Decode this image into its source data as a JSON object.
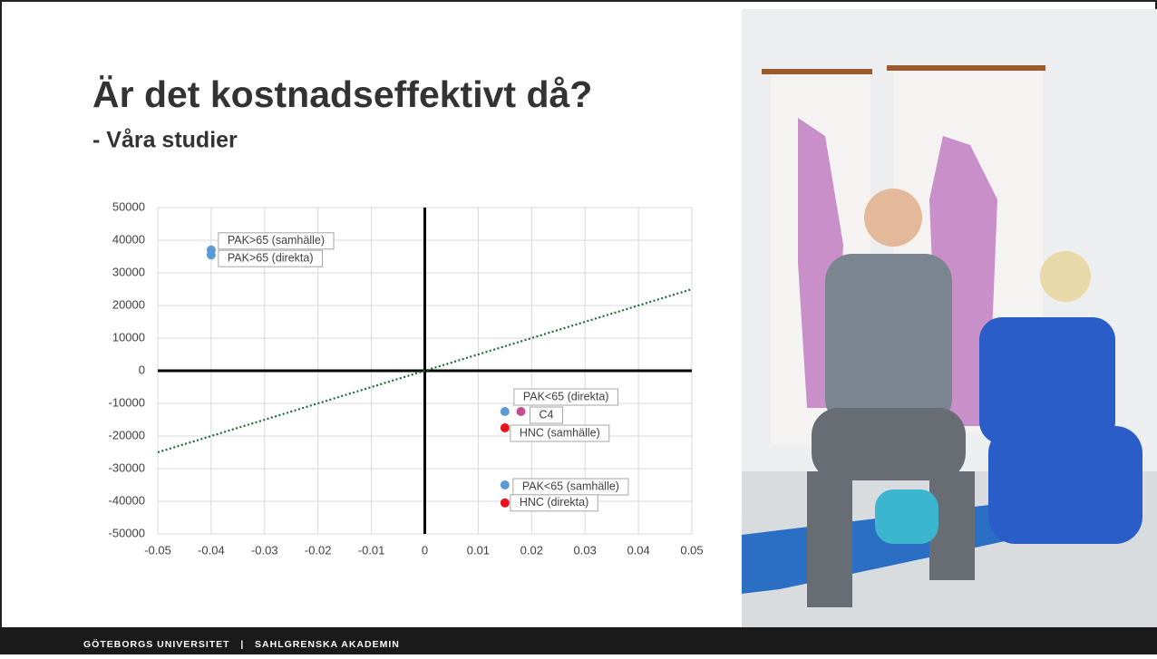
{
  "slide": {
    "title": "Är det kostnadseffektivt då?",
    "subtitle": "- Våra studier",
    "footer": "GÖTEBORGS UNIVERSITET   |   SAHLGRENSKA AKADEMIN"
  },
  "chart_data": {
    "type": "scatter",
    "xlim": [
      -0.05,
      0.05
    ],
    "ylim": [
      -50000,
      50000
    ],
    "xticks": [
      -0.05,
      -0.04,
      -0.03,
      -0.02,
      -0.01,
      0,
      0.01,
      0.02,
      0.03,
      0.04,
      0.05
    ],
    "yticks": [
      -50000,
      -40000,
      -30000,
      -20000,
      -10000,
      0,
      10000,
      20000,
      30000,
      40000,
      50000
    ],
    "grid": true,
    "threshold": {
      "x": [
        -0.05,
        0.05
      ],
      "y": [
        -25000,
        25000
      ],
      "color": "#1e6b3a"
    },
    "series": [
      {
        "name": "PAK>65 (samhälle)",
        "color": "#5b9bd5",
        "x": [
          -0.04
        ],
        "values": [
          37000
        ]
      },
      {
        "name": "PAK>65 (direkta)",
        "color": "#5b9bd5",
        "x": [
          -0.04
        ],
        "values": [
          35500
        ]
      },
      {
        "name": "PAK<65 (direkta)",
        "color": "#5b9bd5",
        "x": [
          0.015
        ],
        "values": [
          -12500
        ]
      },
      {
        "name": "C4",
        "color": "#c0508a",
        "x": [
          0.018
        ],
        "values": [
          -12500
        ]
      },
      {
        "name": "HNC (samhälle)",
        "color": "#e8141c",
        "x": [
          0.015
        ],
        "values": [
          -17500
        ]
      },
      {
        "name": "PAK<65 (samhälle)",
        "color": "#5b9bd5",
        "x": [
          0.015
        ],
        "values": [
          -35000
        ]
      },
      {
        "name": "HNC (direkta)",
        "color": "#e8141c",
        "x": [
          0.015
        ],
        "values": [
          -40500
        ]
      }
    ]
  }
}
